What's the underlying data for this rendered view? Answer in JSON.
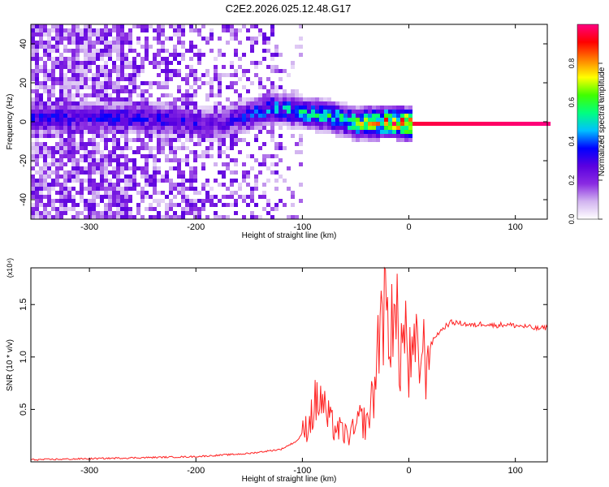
{
  "chart_data": [
    {
      "type": "heatmap",
      "title": "C2E2.2026.025.12.48.G17",
      "xlabel": "Height of straight line (km)",
      "ylabel": "Frequency (Hz)",
      "xlim": [
        -355,
        130
      ],
      "ylim": [
        -50,
        50
      ],
      "x_ticks": [
        -300,
        -200,
        -100,
        0,
        100
      ],
      "y_ticks": [
        -40,
        -20,
        0,
        20,
        40
      ],
      "colorbar": {
        "label": "Normalized spectral amplitude",
        "range": [
          0.0,
          1.0
        ],
        "ticks": [
          0.0,
          0.2,
          0.4,
          0.6,
          0.8
        ],
        "tick_labels": [
          "0.0",
          "0.2",
          "0.4",
          "0.6",
          "0.8"
        ],
        "colormap": [
          "#ffffff",
          "#d2b4f0",
          "#8a2be2",
          "#5a00e0",
          "#0000ff",
          "#00c0ff",
          "#00ff80",
          "#40ff00",
          "#ffff00",
          "#ff8000",
          "#ff0000",
          "#ff0080"
        ]
      },
      "description_points": [
        {
          "x": -250,
          "y": 3,
          "amp": 0.35
        },
        {
          "x": -180,
          "y": 0,
          "amp": 0.3
        },
        {
          "x": -130,
          "y": 8,
          "amp": 0.45
        },
        {
          "x": -80,
          "y": 4,
          "amp": 0.55
        },
        {
          "x": -50,
          "y": 0,
          "amp": 0.65
        },
        {
          "x": -20,
          "y": 1,
          "amp": 0.85
        },
        {
          "x": 0,
          "y": 0,
          "amp": 0.95
        },
        {
          "x": 130,
          "y": 0,
          "amp": 1.0
        }
      ]
    },
    {
      "type": "line",
      "xlabel": "Height of straight line (km)",
      "ylabel": "SNR (10 * v/v)",
      "y_multiplier_label": "(x10⁴)",
      "xlim": [
        -355,
        130
      ],
      "ylim": [
        0,
        1.85
      ],
      "x_ticks": [
        -300,
        -200,
        -100,
        0,
        100
      ],
      "y_ticks": [
        0.5,
        1.0,
        1.5
      ],
      "y_tick_labels": [
        "0.5",
        "1.0",
        "1.5"
      ],
      "series": [
        {
          "name": "SNR",
          "color": "#ff2020",
          "x": [
            -355,
            -300,
            -250,
            -200,
            -150,
            -120,
            -105,
            -95,
            -88,
            -82,
            -78,
            -72,
            -65,
            -58,
            -50,
            -45,
            -40,
            -35,
            -30,
            -27,
            -24,
            -21,
            -18,
            -16,
            -14,
            -12,
            -9,
            -6,
            -3,
            0,
            5,
            10,
            15,
            20,
            25,
            30,
            35,
            40,
            50,
            60,
            70,
            80,
            90,
            100,
            110,
            120,
            130
          ],
          "values": [
            0.02,
            0.03,
            0.04,
            0.05,
            0.08,
            0.12,
            0.2,
            0.35,
            0.55,
            0.6,
            0.45,
            0.35,
            0.3,
            0.25,
            0.3,
            0.42,
            0.35,
            0.55,
            0.9,
            1.45,
            1.6,
            1.3,
            1.2,
            1.85,
            1.2,
            1.35,
            1.05,
            1.15,
            1.2,
            0.9,
            0.95,
            1.05,
            0.98,
            1.1,
            1.2,
            1.25,
            1.3,
            1.33,
            1.32,
            1.3,
            1.32,
            1.3,
            1.31,
            1.3,
            1.29,
            1.27,
            1.28
          ]
        }
      ]
    }
  ]
}
